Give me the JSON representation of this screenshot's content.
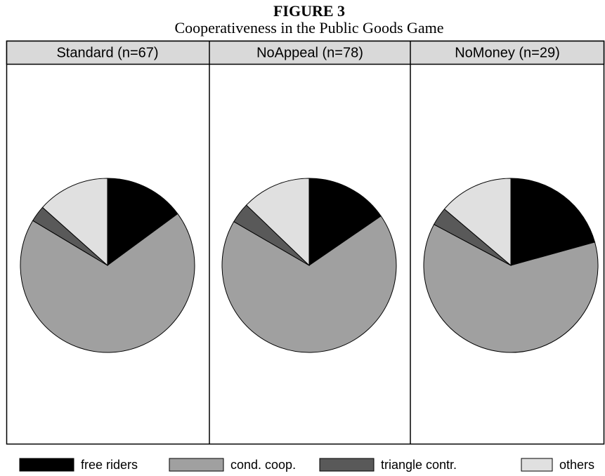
{
  "chart_data": {
    "type": "pie",
    "title": "FIGURE 3",
    "subtitle": "Cooperativeness in the Public Goods Game",
    "categories": [
      "free riders",
      "cond. coop.",
      "triangle contr.",
      "others"
    ],
    "colors": [
      "#000000",
      "#a0a0a0",
      "#595959",
      "#e0e0e0"
    ],
    "panels": [
      {
        "name": "Standard (n=67)",
        "values": [
          14.9,
          68.7,
          3.0,
          13.4
        ]
      },
      {
        "name": "NoAppeal (n=78)",
        "values": [
          15.4,
          67.9,
          3.8,
          12.8
        ]
      },
      {
        "name": "NoMoney (n=29)",
        "values": [
          20.7,
          62.1,
          3.4,
          13.8
        ]
      }
    ]
  }
}
